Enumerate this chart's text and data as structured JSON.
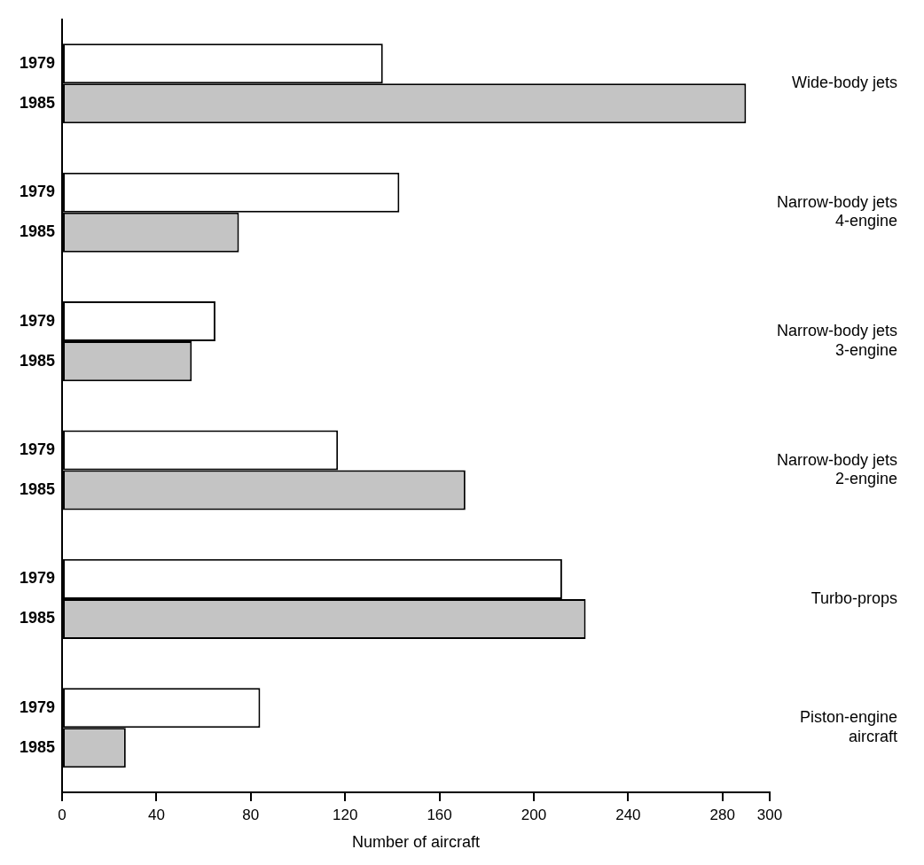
{
  "chart_data": {
    "type": "bar",
    "orientation": "horizontal",
    "xlabel": "Number of aircraft",
    "categories": [
      "Wide-body jets",
      "Narrow-body jets\n4-engine",
      "Narrow-body jets\n3-engine",
      "Narrow-body jets\n2-engine",
      "Turbo-props",
      "Piston-engine\naircraft"
    ],
    "series": [
      {
        "name": "1979",
        "color": "#ffffff",
        "values": [
          136,
          143,
          65,
          117,
          212,
          84
        ]
      },
      {
        "name": "1985",
        "color": "#c4c4c4",
        "values": [
          290,
          75,
          55,
          171,
          222,
          27
        ]
      }
    ],
    "xlim": [
      0,
      300
    ],
    "xticks": [
      0,
      40,
      80,
      120,
      160,
      200,
      240,
      280,
      300
    ],
    "grid": false,
    "legend": false
  }
}
